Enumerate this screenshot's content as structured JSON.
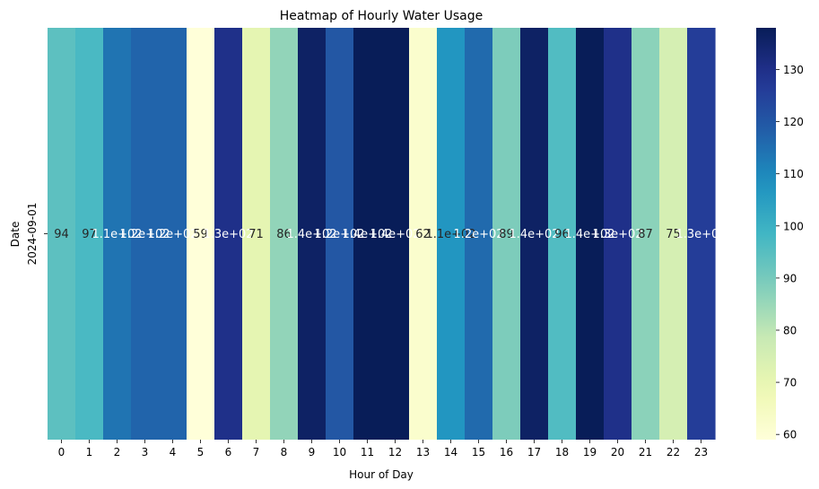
{
  "chart_data": {
    "type": "heatmap",
    "title": "Heatmap of Hourly Water Usage",
    "xlabel": "Hour of Day",
    "ylabel": "Date",
    "x": [
      "0",
      "1",
      "2",
      "3",
      "4",
      "5",
      "6",
      "7",
      "8",
      "9",
      "10",
      "11",
      "12",
      "13",
      "14",
      "15",
      "16",
      "17",
      "18",
      "19",
      "20",
      "21",
      "22",
      "23"
    ],
    "y": [
      "2024-09-01"
    ],
    "values": [
      [
        94,
        97,
        114,
        117,
        117,
        59,
        130,
        71,
        86,
        136,
        120,
        142,
        142,
        62,
        107,
        116,
        89,
        136,
        96,
        140,
        130,
        87,
        75,
        126
      ]
    ],
    "cell_labels": [
      "94",
      "97",
      "1.1e+02",
      "1.2e+02",
      "1.2e+02",
      "59",
      "1.3e+02",
      "71",
      "86",
      "1.4e+02",
      "1.2e+02",
      "1.4e+02",
      "1.4e+02",
      "62",
      "1.1e+02",
      "1.2e+02",
      "89",
      "1.4e+02",
      "96",
      "1.4e+02",
      "1.3e+02",
      "87",
      "75",
      "1.3e+02"
    ],
    "colormap": "YlGnBu",
    "colorbar": {
      "range": [
        59,
        138
      ],
      "ticks": [
        60,
        70,
        80,
        90,
        100,
        110,
        120,
        130
      ]
    },
    "grid": false,
    "legend": "colorbar-right"
  }
}
